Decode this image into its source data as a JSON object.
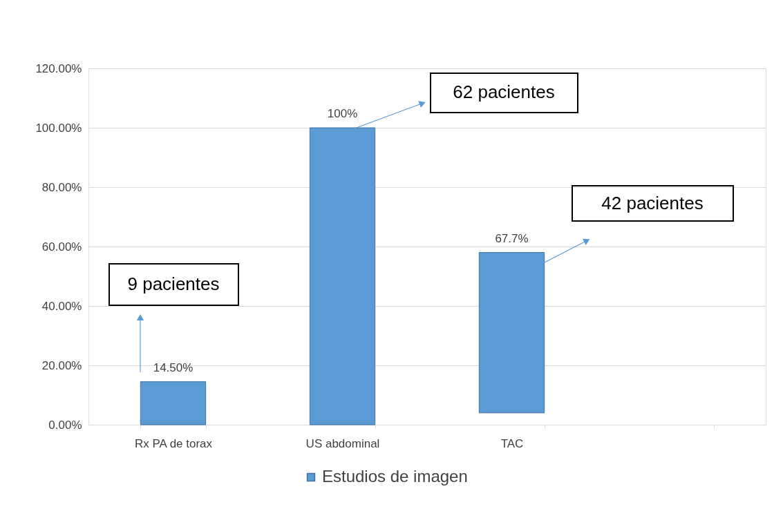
{
  "chart_data": {
    "type": "bar",
    "categories": [
      "Rx PA de torax",
      "US abdominal",
      "TAC",
      null
    ],
    "series": [
      {
        "name": "Estudios de imagen",
        "color": "#5b9bd5",
        "values": [
          14.5,
          100,
          54,
          null
        ],
        "base": [
          0,
          0,
          4,
          null
        ]
      }
    ],
    "value_labels": [
      "14.50%",
      "100%",
      "67.7%",
      null
    ],
    "ylim": [
      0,
      120
    ],
    "yticks": [
      {
        "value": 0,
        "label": "0.00%"
      },
      {
        "value": 20,
        "label": "20.00%"
      },
      {
        "value": 40,
        "label": "40.00%"
      },
      {
        "value": 60,
        "label": "60.00%"
      },
      {
        "value": 80,
        "label": "80.00%"
      },
      {
        "value": 100,
        "label": "100.00%"
      },
      {
        "value": 120,
        "label": "120.00%"
      }
    ],
    "grid": "y",
    "legend": "bottom",
    "annotations": [
      "9 pacientes",
      "62 pacientes",
      "42 pacientes"
    ]
  }
}
